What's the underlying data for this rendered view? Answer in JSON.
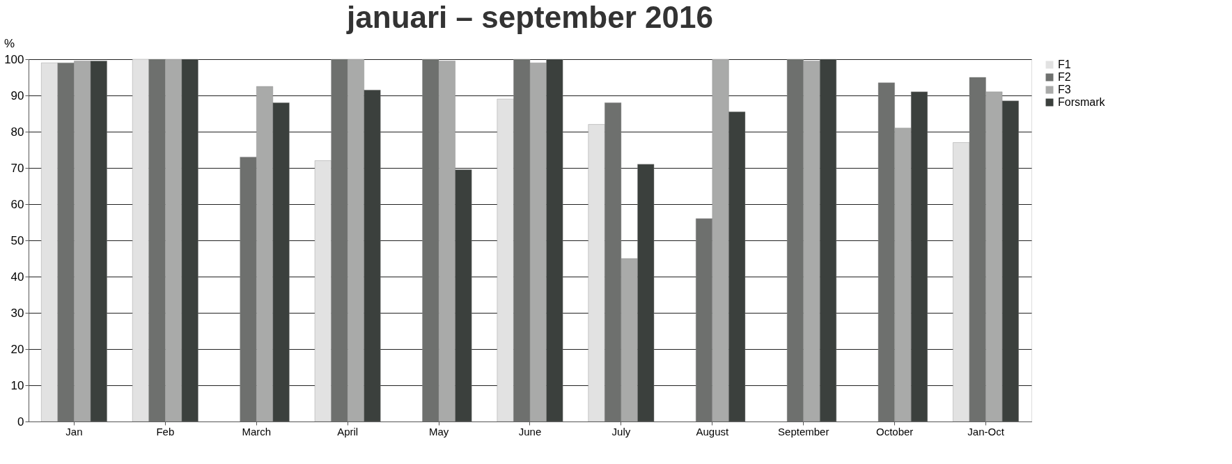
{
  "chart_data": {
    "type": "bar",
    "title": "januari – september 2016",
    "ylabel": "%",
    "categories": [
      "Jan",
      "Feb",
      "March",
      "April",
      "May",
      "June",
      "July",
      "August",
      "September",
      "October",
      "Jan-Oct"
    ],
    "series": [
      {
        "name": "F1",
        "color": "#e2e2e2",
        "values": [
          99,
          100,
          null,
          72,
          null,
          89,
          82,
          null,
          null,
          null,
          77
        ]
      },
      {
        "name": "F2",
        "color": "#6e706e",
        "values": [
          99,
          100,
          73,
          100,
          100,
          100,
          88,
          56,
          100,
          93.5,
          95
        ]
      },
      {
        "name": "F3",
        "color": "#a9aaa9",
        "values": [
          99.5,
          100,
          92.5,
          100,
          99.5,
          99,
          45,
          100,
          99.5,
          81,
          91
        ]
      },
      {
        "name": "Forsmark",
        "color": "#3b403d",
        "values": [
          99.5,
          100,
          88,
          91.5,
          69.5,
          100,
          71,
          85.5,
          100,
          91,
          88.5
        ]
      }
    ],
    "ylim": [
      0,
      100
    ],
    "yticks": [
      0,
      10,
      20,
      30,
      40,
      50,
      60,
      70,
      80,
      90,
      100
    ],
    "grid": "y",
    "legend": "right"
  }
}
